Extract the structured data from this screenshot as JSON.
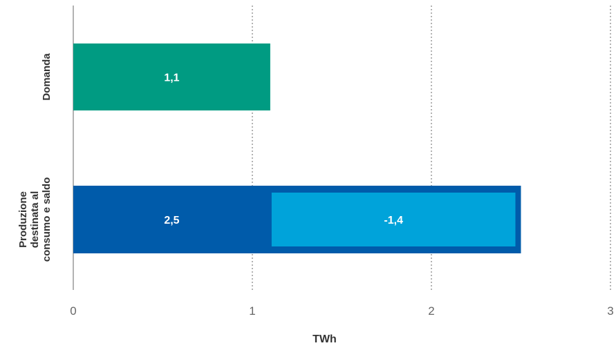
{
  "chart_data": {
    "type": "bar",
    "orientation": "horizontal",
    "xlabel": "TWh",
    "xlim": [
      0,
      3
    ],
    "xticks": [
      "0",
      "1",
      "2",
      "3"
    ],
    "grid": "vertical dotted",
    "bars": [
      {
        "category_lines": [
          "Domanda"
        ],
        "value": 1.1,
        "label": "1,1",
        "color": "#009B82"
      },
      {
        "category_lines": [
          "Produzione",
          "destinata al",
          "consumo e saldo"
        ],
        "value": 2.5,
        "label": "2,5",
        "color": "#005BAA",
        "inner": {
          "start": 2.5,
          "value": -1.4,
          "label": "-1,4",
          "color": "#00A3DA"
        }
      }
    ]
  }
}
